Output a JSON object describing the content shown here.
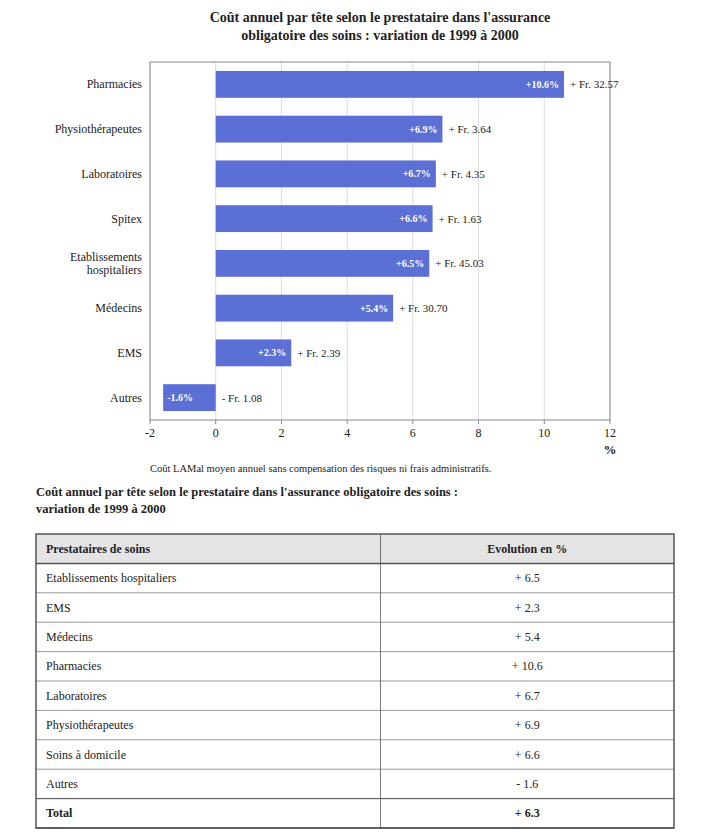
{
  "chart_data": [
    {
      "type": "bar",
      "orientation": "horizontal",
      "title": "Coût annuel par tête selon le prestataire dans l'assurance\nobligatoire des soins : variation de 1999 à 2000",
      "categories": [
        "Autres",
        "EMS",
        "Médecins",
        "Etablissements\nhospitaliers",
        "Spitex",
        "Laboratoires",
        "Physiothérapeutes",
        "Pharmacies"
      ],
      "values": [
        -1.6,
        2.3,
        5.4,
        6.5,
        6.6,
        6.7,
        6.9,
        10.6
      ],
      "value_labels": [
        "-1.6%",
        "+2.3%",
        "+5.4%",
        "+6.5%",
        "+6.6%",
        "+6.7%",
        "+6.9%",
        "+10.6%"
      ],
      "data_labels": true,
      "annotations": [
        "- Fr. 1.08",
        "+ Fr. 2.39",
        "+ Fr. 30.70",
        "+ Fr. 45.03",
        "+ Fr. 1.63",
        "+ Fr. 4.35",
        "+ Fr. 3.64",
        "+ Fr. 32.57"
      ],
      "color": "#5b6fd4",
      "xlim": [
        -2,
        12
      ],
      "xticks": [
        -2,
        0,
        2,
        4,
        6,
        8,
        10,
        12
      ],
      "xlabel": "%",
      "note": "Coût LAMal moyen annuel sans compensation des risques ni frais administratifs.",
      "grid": true
    },
    {
      "type": "table",
      "title": "Coût annuel par tête selon le prestataire dans l'assurance obligatoire des soins :\nvariation de 1999 à 2000",
      "columns": [
        "Prestataires de soins",
        "Evolution en %"
      ],
      "rows": [
        [
          "Etablissements hospitaliers",
          "+ 6.5"
        ],
        [
          "EMS",
          "+ 2.3"
        ],
        [
          "Médecins",
          "+ 5.4"
        ],
        [
          "Pharmacies",
          "+ 10.6"
        ],
        [
          "Laboratoires",
          "+ 6.7"
        ],
        [
          "Physiothérapeutes",
          "+ 6.9"
        ],
        [
          "Soins à domicile",
          "+ 6.6"
        ],
        [
          "Autres",
          "- 1.6"
        ],
        [
          "Total",
          "+ 6.3"
        ]
      ]
    }
  ]
}
